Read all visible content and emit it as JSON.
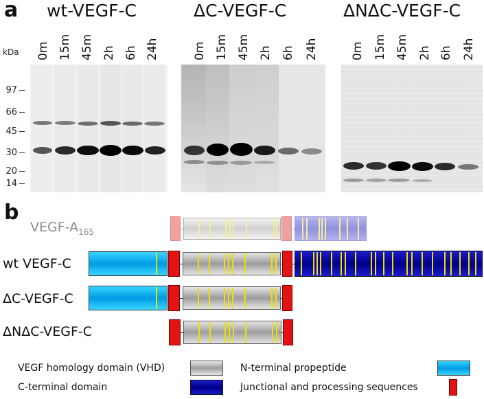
{
  "panel_a": {
    "letter": "a",
    "kda_label": "kDa",
    "markers": [
      "97",
      "66",
      "45",
      "30",
      "20",
      "14"
    ],
    "gels": [
      {
        "title": "wt-VEGF-C",
        "lanes": [
          "0m",
          "15m",
          "45m",
          "2h",
          "6h",
          "24h"
        ]
      },
      {
        "title": "ΔC-VEGF-C",
        "lanes": [
          "0m",
          "15m",
          "45m",
          "2h",
          "6h",
          "24h"
        ]
      },
      {
        "title": "ΔNΔC-VEGF-C",
        "lanes": [
          "0m",
          "15m",
          "45m",
          "2h",
          "6h",
          "24h"
        ]
      }
    ]
  },
  "panel_b": {
    "letter": "b",
    "constructs": {
      "vegfa": {
        "name": "VEGF-A",
        "subscript": "165"
      },
      "wt": {
        "name": "wt VEGF-C"
      },
      "dc": {
        "name": "ΔC-VEGF-C"
      },
      "dndc": {
        "name": "ΔNΔC-VEGF-C"
      }
    },
    "legend": {
      "vhd": "VEGF homology domain (VHD)",
      "ctd": "C-terminal domain",
      "nprop": "N-terminal propeptide",
      "junc": "Junctional and processing sequences"
    }
  },
  "colors": {
    "vhd": "#a8a8a8",
    "n_terminal_propeptide": "#14b8f0",
    "c_terminal_domain": "#0000a0",
    "junctional": "#e21313",
    "cysteine": "#f0e000",
    "faded_text": "#8a8a8a"
  }
}
